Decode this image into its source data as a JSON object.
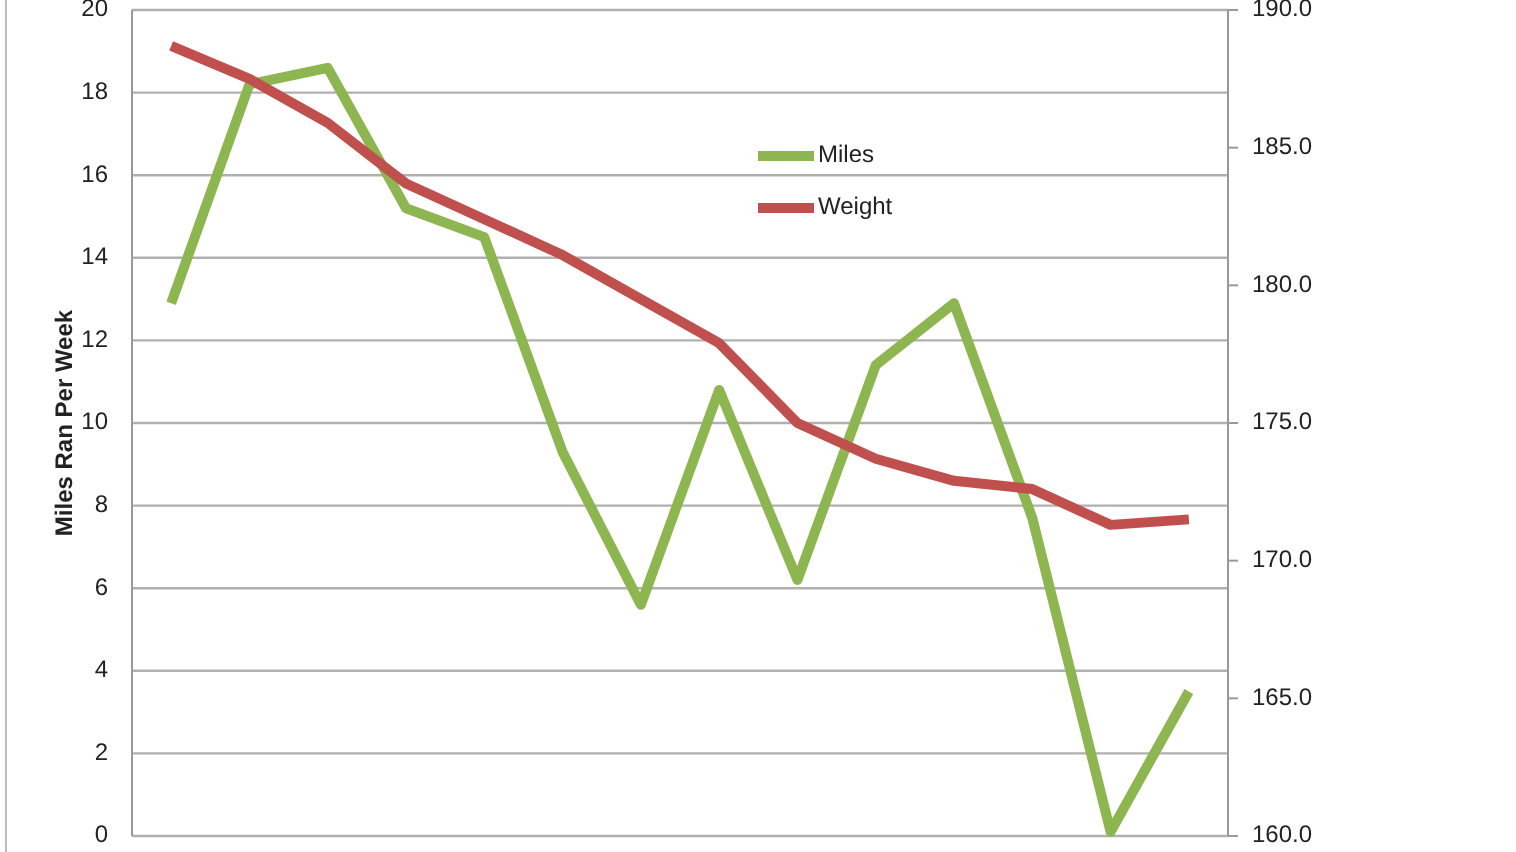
{
  "chart_data": {
    "type": "line",
    "ylabel": "Miles Ran Per Week",
    "categories": [
      null,
      null,
      null,
      null,
      null,
      null,
      null,
      null,
      null,
      null,
      null,
      null,
      null,
      null
    ],
    "ylim": [
      0,
      20
    ],
    "yticks": [
      0,
      2,
      4,
      6,
      8,
      10,
      12,
      14,
      16,
      18,
      20
    ],
    "y2lim": [
      160,
      190
    ],
    "y2ticks": [
      {
        "value": 160,
        "label": "160.0"
      },
      {
        "value": 165,
        "label": "165.0"
      },
      {
        "value": 170,
        "label": "170.0"
      },
      {
        "value": 175,
        "label": "175.0"
      },
      {
        "value": 180,
        "label": "180.0"
      },
      {
        "value": 185,
        "label": "185.0"
      },
      {
        "value": 190,
        "label": "190.0"
      }
    ],
    "grid": "y",
    "legend": "top",
    "marker": "none",
    "series": [
      {
        "name": "Miles",
        "color": "#8db650",
        "values": [
          12.9,
          18.2,
          18.6,
          15.2,
          14.5,
          9.3,
          5.6,
          10.8,
          6.2,
          11.4,
          12.9,
          7.7,
          0.1,
          3.5
        ]
      },
      {
        "name": "Weight",
        "color": "#c0504d",
        "axis": "y2",
        "values": [
          188.7,
          187.5,
          185.9,
          183.7,
          182.4,
          181.1,
          179.5,
          177.9,
          175.0,
          173.7,
          172.9,
          172.6,
          171.3,
          171.5
        ]
      }
    ]
  }
}
